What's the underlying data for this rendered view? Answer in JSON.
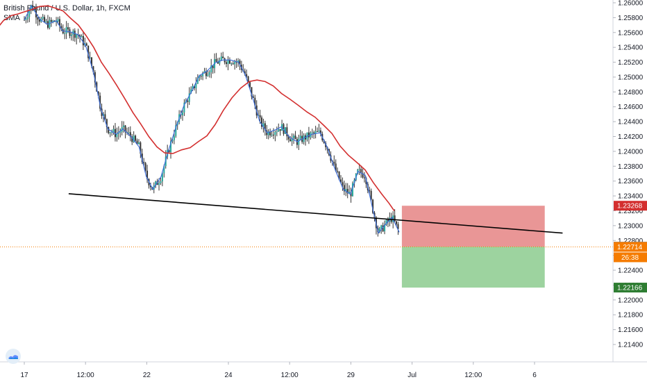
{
  "legend": {
    "title": "British Pound / U.S. Dollar, 1h, FXCM",
    "indicator": "SMA"
  },
  "colors": {
    "bull": "#26a69a",
    "bear": "#333333",
    "candle_wick": "#333333",
    "sma_fast": "#3f6fd8",
    "sma_slow": "#d32f2f",
    "trendline": "#000000",
    "stop_zone": "rgba(219,80,80,0.6)",
    "target_zone": "rgba(76,175,80,0.55)",
    "current_price_line": "#f57c00"
  },
  "chart_data": {
    "type": "line",
    "title": "British Pound / U.S. Dollar, 1h, FXCM",
    "ylim": [
      1.2132,
      1.2613
    ],
    "y_ticks": [
      "1.26000",
      "1.25800",
      "1.25600",
      "1.25400",
      "1.25200",
      "1.25000",
      "1.24800",
      "1.24600",
      "1.24400",
      "1.24200",
      "1.24000",
      "1.23800",
      "1.23600",
      "1.23400",
      "1.23200",
      "1.23000",
      "1.22800",
      "1.22600",
      "1.22400",
      "1.22200",
      "1.22000",
      "1.21800",
      "1.21600",
      "1.21400"
    ],
    "x_ticks": [
      {
        "label": "17",
        "x": 0
      },
      {
        "label": "12:00",
        "x": 12
      },
      {
        "label": "22",
        "x": 24
      },
      {
        "label": "24",
        "x": 40
      },
      {
        "label": "12:00",
        "x": 52
      },
      {
        "label": "29",
        "x": 64
      },
      {
        "label": "Jul",
        "x": 76
      },
      {
        "label": "12:00",
        "x": 88
      },
      {
        "label": "6",
        "x": 100
      }
    ],
    "xlim": [
      -5.5,
      112
    ],
    "series": [
      {
        "type": "line",
        "points": [
          [
            0.0,
            1.2577
          ],
          [
            1.4,
            1.2596
          ],
          [
            3.0,
            1.2578
          ],
          [
            4.5,
            1.2571
          ],
          [
            6.3,
            1.2576
          ],
          [
            7.5,
            1.2562
          ],
          [
            9.0,
            1.2561
          ],
          [
            10.6,
            1.2557
          ],
          [
            12.1,
            1.2541
          ],
          [
            13.6,
            1.2505
          ],
          [
            15.0,
            1.2457
          ],
          [
            16.4,
            1.243
          ],
          [
            18.0,
            1.2423
          ],
          [
            19.3,
            1.243
          ],
          [
            20.9,
            1.242
          ],
          [
            22.5,
            1.2406
          ],
          [
            23.9,
            1.2366
          ],
          [
            25.2,
            1.2349
          ],
          [
            26.8,
            1.2366
          ],
          [
            28.2,
            1.24
          ],
          [
            29.8,
            1.2434
          ],
          [
            31.3,
            1.2462
          ],
          [
            32.9,
            1.2482
          ],
          [
            34.3,
            1.2502
          ],
          [
            35.8,
            1.2508
          ],
          [
            37.4,
            1.2519
          ],
          [
            38.9,
            1.2523
          ],
          [
            40.4,
            1.2523
          ],
          [
            42.0,
            1.252
          ],
          [
            43.3,
            1.2503
          ],
          [
            44.9,
            1.2469
          ],
          [
            46.1,
            1.2441
          ],
          [
            47.6,
            1.2425
          ],
          [
            49.2,
            1.2429
          ],
          [
            50.4,
            1.2433
          ],
          [
            52.0,
            1.2419
          ],
          [
            53.5,
            1.2413
          ],
          [
            55.1,
            1.2419
          ],
          [
            56.4,
            1.2423
          ],
          [
            58.0,
            1.2425
          ],
          [
            59.4,
            1.2405
          ],
          [
            60.9,
            1.2376
          ],
          [
            62.5,
            1.2349
          ],
          [
            63.9,
            1.2342
          ],
          [
            65.4,
            1.2373
          ],
          [
            66.8,
            1.2368
          ],
          [
            68.3,
            1.2322
          ],
          [
            69.4,
            1.229
          ],
          [
            70.7,
            1.2301
          ],
          [
            72.1,
            1.2311
          ],
          [
            73.5,
            1.2291
          ]
        ]
      },
      {
        "type": "line",
        "points": [
          [
            -5.5,
            1.2564
          ],
          [
            -4.1,
            1.2576
          ],
          [
            -2.5,
            1.2583
          ],
          [
            -1.2,
            1.2585
          ],
          [
            0.1,
            1.2588
          ],
          [
            1.5,
            1.2591
          ],
          [
            3.0,
            1.2595
          ],
          [
            4.6,
            1.2596
          ],
          [
            6.0,
            1.2593
          ],
          [
            7.6,
            1.2589
          ],
          [
            9.1,
            1.2579
          ],
          [
            10.6,
            1.257
          ],
          [
            12.1,
            1.2556
          ],
          [
            13.6,
            1.254
          ],
          [
            15.1,
            1.252
          ],
          [
            16.6,
            1.2505
          ],
          [
            18.1,
            1.2489
          ],
          [
            19.6,
            1.2472
          ],
          [
            21.3,
            1.2452
          ],
          [
            22.8,
            1.2437
          ],
          [
            24.4,
            1.242
          ],
          [
            26.0,
            1.2406
          ],
          [
            27.5,
            1.2398
          ],
          [
            29.1,
            1.2397
          ],
          [
            30.8,
            1.2402
          ],
          [
            32.5,
            1.2405
          ],
          [
            34.1,
            1.2413
          ],
          [
            35.8,
            1.2421
          ],
          [
            37.4,
            1.2436
          ],
          [
            39.0,
            1.2455
          ],
          [
            40.7,
            1.2472
          ],
          [
            42.4,
            1.2485
          ],
          [
            44.1,
            1.2494
          ],
          [
            45.6,
            1.2496
          ],
          [
            47.2,
            1.2494
          ],
          [
            48.8,
            1.2488
          ],
          [
            50.4,
            1.2478
          ],
          [
            52.1,
            1.247
          ],
          [
            53.7,
            1.2462
          ],
          [
            55.4,
            1.2453
          ],
          [
            57.0,
            1.2446
          ],
          [
            58.7,
            1.2435
          ],
          [
            60.3,
            1.2424
          ],
          [
            61.9,
            1.2407
          ],
          [
            63.5,
            1.2395
          ],
          [
            65.2,
            1.2385
          ],
          [
            66.8,
            1.2375
          ],
          [
            68.4,
            1.2358
          ],
          [
            70.0,
            1.2343
          ],
          [
            71.5,
            1.233
          ],
          [
            72.5,
            1.232
          ]
        ]
      },
      {
        "type": "line",
        "points": [
          [
            8.7,
            1.2343
          ],
          [
            105.5,
            1.229
          ]
        ]
      }
    ],
    "candles_anchor": [
      [
        0.0,
        1.2577
      ],
      [
        1.4,
        1.2596
      ],
      [
        3.0,
        1.2578
      ],
      [
        4.5,
        1.2571
      ],
      [
        6.3,
        1.2576
      ],
      [
        7.5,
        1.2562
      ],
      [
        9.0,
        1.2561
      ],
      [
        10.6,
        1.2557
      ],
      [
        12.1,
        1.2541
      ],
      [
        13.6,
        1.2505
      ],
      [
        15.0,
        1.2457
      ],
      [
        16.4,
        1.243
      ],
      [
        18.0,
        1.2423
      ],
      [
        19.3,
        1.243
      ],
      [
        20.9,
        1.242
      ],
      [
        22.5,
        1.2406
      ],
      [
        23.9,
        1.2366
      ],
      [
        25.2,
        1.2349
      ],
      [
        26.8,
        1.2366
      ],
      [
        28.2,
        1.24
      ],
      [
        29.8,
        1.2434
      ],
      [
        31.3,
        1.2462
      ],
      [
        32.9,
        1.2482
      ],
      [
        34.3,
        1.2502
      ],
      [
        35.8,
        1.2508
      ],
      [
        37.4,
        1.2519
      ],
      [
        38.9,
        1.2523
      ],
      [
        40.4,
        1.2523
      ],
      [
        42.0,
        1.252
      ],
      [
        43.3,
        1.2503
      ],
      [
        44.9,
        1.2469
      ],
      [
        46.1,
        1.2441
      ],
      [
        47.6,
        1.2425
      ],
      [
        49.2,
        1.2429
      ],
      [
        50.4,
        1.2433
      ],
      [
        52.0,
        1.2419
      ],
      [
        53.5,
        1.2413
      ],
      [
        55.1,
        1.2419
      ],
      [
        56.4,
        1.2423
      ],
      [
        58.0,
        1.2425
      ],
      [
        59.4,
        1.2405
      ],
      [
        60.9,
        1.2376
      ],
      [
        62.5,
        1.2349
      ],
      [
        63.9,
        1.2342
      ],
      [
        65.4,
        1.2373
      ],
      [
        66.8,
        1.2368
      ],
      [
        68.3,
        1.2322
      ],
      [
        69.4,
        1.229
      ],
      [
        70.7,
        1.2301
      ],
      [
        72.1,
        1.2311
      ],
      [
        73.5,
        1.2291
      ]
    ],
    "zones": {
      "stop": {
        "x_start": 74,
        "x_end": 102,
        "y_top": 1.23268,
        "y_bottom": 1.22717
      },
      "target": {
        "x_start": 74,
        "x_end": 102,
        "y_top": 1.22717,
        "y_bottom": 1.22166
      }
    },
    "current_price": 1.22714,
    "price_tags": [
      {
        "value": 1.23268,
        "label": "1.23268",
        "color": "#d32f2f"
      },
      {
        "value": 1.22717,
        "label": "1.22717",
        "color": "#787b86"
      },
      {
        "value": 1.22714,
        "label": "1.22714",
        "color": "#f57c00"
      },
      {
        "value": 1.22166,
        "label": "1.22166",
        "color": "#2e7d32"
      }
    ],
    "countdown": "26:38"
  }
}
